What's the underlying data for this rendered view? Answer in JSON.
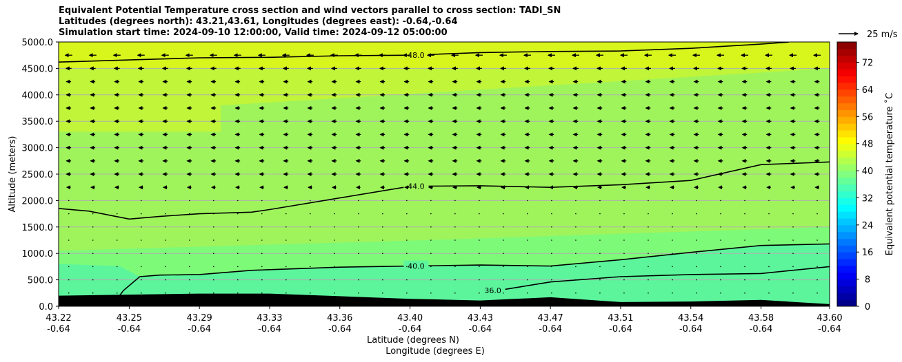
{
  "title": {
    "line1": "Equivalent Potential Temperature cross section and wind vectors parallel to cross section: TADI_SN",
    "line2": "Latitudes (degrees north): 43.21,43.61, Longitudes (degrees east): -0.64,-0.64",
    "line3": "Simulation start time: 2024-09-10 12:00:00, Valid time: 2024-09-12 05:00:00"
  },
  "colors": {
    "fill_42_44": "#9ff45c",
    "fill_40_42": "#7dfa78",
    "fill_38_40": "#5cf59c",
    "fill_44_46": "#c0f53a",
    "fill_46_48": "#d8f51c",
    "terrain": "#000000"
  },
  "chart_data": {
    "type": "contourf",
    "xlabel": "Latitude (degrees N)",
    "xlabel2": "Longitude (degrees E)",
    "ylabel": "Altitude (meters)",
    "ylim": [
      0,
      5000
    ],
    "xlim": [
      43.22,
      43.6
    ],
    "x_ticks": [
      {
        "lat": "43.22",
        "lon": "-0.64",
        "v": 43.22
      },
      {
        "lat": "43.25",
        "lon": "-0.64",
        "v": 43.2548
      },
      {
        "lat": "43.29",
        "lon": "-0.64",
        "v": 43.2894
      },
      {
        "lat": "43.33",
        "lon": "-0.64",
        "v": 43.324
      },
      {
        "lat": "43.36",
        "lon": "-0.64",
        "v": 43.3586
      },
      {
        "lat": "43.40",
        "lon": "-0.64",
        "v": 43.3932
      },
      {
        "lat": "43.43",
        "lon": "-0.64",
        "v": 43.4278
      },
      {
        "lat": "43.47",
        "lon": "-0.64",
        "v": 43.4624
      },
      {
        "lat": "43.51",
        "lon": "-0.64",
        "v": 43.497
      },
      {
        "lat": "43.54",
        "lon": "-0.64",
        "v": 43.5316
      },
      {
        "lat": "43.58",
        "lon": "-0.64",
        "v": 43.5662
      },
      {
        "lat": "43.60",
        "lon": "-0.64",
        "v": 43.6
      }
    ],
    "y_ticks": [
      "0.0",
      "500.0",
      "1000.0",
      "1500.0",
      "2000.0",
      "2500.0",
      "3000.0",
      "3500.0",
      "4000.0",
      "4500.0",
      "5000.0"
    ],
    "y_tick_values": [
      0,
      500,
      1000,
      1500,
      2000,
      2500,
      3000,
      3500,
      4000,
      4500,
      5000
    ],
    "grid": true,
    "contours": [
      {
        "label": "48.0",
        "label_at": [
          43.3962,
          4750
        ],
        "points": [
          [
            43.22,
            4620
          ],
          [
            43.2548,
            4660
          ],
          [
            43.2894,
            4700
          ],
          [
            43.324,
            4710
          ],
          [
            43.3586,
            4740
          ],
          [
            43.3932,
            4750
          ],
          [
            43.4278,
            4800
          ],
          [
            43.4624,
            4820
          ],
          [
            43.497,
            4830
          ],
          [
            43.5316,
            4880
          ],
          [
            43.5662,
            4960
          ],
          [
            43.58,
            5000
          ]
        ]
      },
      {
        "label": "44.0",
        "label_at": [
          43.3962,
          2270
        ],
        "points": [
          [
            43.22,
            1850
          ],
          [
            43.235,
            1800
          ],
          [
            43.2548,
            1650
          ],
          [
            43.27,
            1700
          ],
          [
            43.2894,
            1750
          ],
          [
            43.315,
            1780
          ],
          [
            43.324,
            1830
          ],
          [
            43.3586,
            2050
          ],
          [
            43.3932,
            2270
          ],
          [
            43.4278,
            2280
          ],
          [
            43.4624,
            2250
          ],
          [
            43.497,
            2300
          ],
          [
            43.5316,
            2380
          ],
          [
            43.5662,
            2680
          ],
          [
            43.6,
            2730
          ]
        ]
      },
      {
        "label": "40.0",
        "label_at": [
          43.3962,
          760
        ],
        "points": [
          [
            43.25,
            200
          ],
          [
            43.252,
            300
          ],
          [
            43.26,
            560
          ],
          [
            43.27,
            590
          ],
          [
            43.2894,
            600
          ],
          [
            43.315,
            680
          ],
          [
            43.3586,
            740
          ],
          [
            43.3932,
            760
          ],
          [
            43.4278,
            780
          ],
          [
            43.4624,
            760
          ],
          [
            43.497,
            880
          ],
          [
            43.5316,
            1020
          ],
          [
            43.5662,
            1150
          ],
          [
            43.6,
            1180
          ]
        ]
      },
      {
        "label": "36.0",
        "label_at": [
          43.434,
          300
        ],
        "points": [
          [
            43.44,
            320
          ],
          [
            43.4624,
            460
          ],
          [
            43.497,
            560
          ],
          [
            43.5316,
            600
          ],
          [
            43.5662,
            620
          ],
          [
            43.6,
            750
          ]
        ]
      }
    ],
    "filled_levels": [
      "36-40",
      "40-42",
      "42-44",
      "44-46",
      "46-48"
    ],
    "colorbar": {
      "label": "Equivalent potential temperature ˚C",
      "ticks": [
        "0",
        "8",
        "16",
        "24",
        "32",
        "40",
        "48",
        "56",
        "64",
        "72"
      ],
      "tick_values": [
        0,
        8,
        16,
        24,
        32,
        40,
        48,
        56,
        64,
        72
      ],
      "range": [
        0,
        78
      ]
    },
    "quiver_key": {
      "label": "25 m/s",
      "value": 25
    },
    "wind_vectors": {
      "note": "vectors point west (southward in cross-section), magnitude increases with altitude",
      "levels_m": [
        0,
        250,
        500,
        750,
        1000,
        1250,
        1500,
        1750,
        2000,
        2250,
        2500,
        2750,
        3000,
        3250,
        3500,
        3750,
        4000,
        4250,
        4500,
        4750
      ],
      "speed_ms": [
        0,
        1,
        1,
        1,
        1,
        1,
        1,
        1,
        2,
        5,
        6,
        6,
        6,
        6,
        6,
        6,
        6,
        6,
        7,
        9
      ]
    },
    "terrain_m": [
      [
        43.22,
        200
      ],
      [
        43.2548,
        220
      ],
      [
        43.2894,
        240
      ],
      [
        43.324,
        240
      ],
      [
        43.3586,
        190
      ],
      [
        43.3932,
        140
      ],
      [
        43.4278,
        110
      ],
      [
        43.4624,
        170
      ],
      [
        43.497,
        80
      ],
      [
        43.5316,
        90
      ],
      [
        43.5662,
        120
      ],
      [
        43.6,
        40
      ]
    ]
  }
}
